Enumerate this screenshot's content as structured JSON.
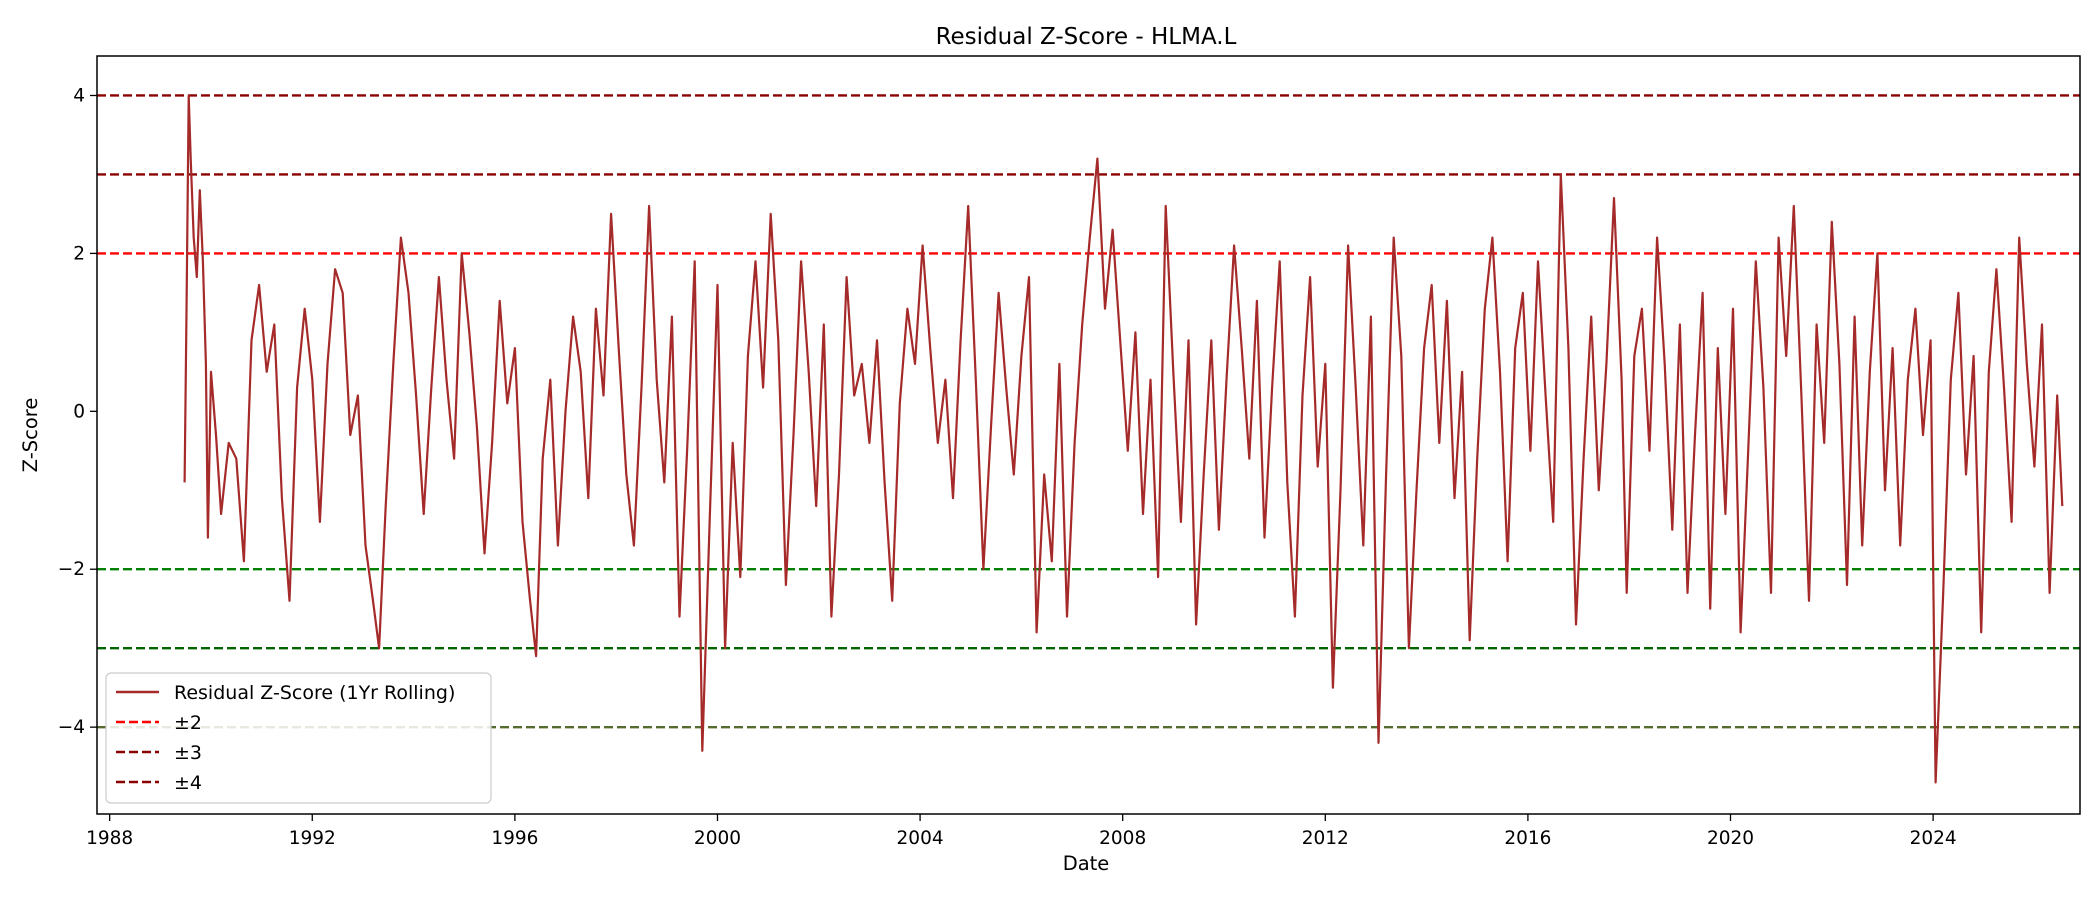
{
  "chart_data": {
    "type": "line",
    "title": "Residual Z-Score - HLMA.L",
    "xlabel": "Date",
    "ylabel": "Z-Score",
    "xlim": [
      1987.75,
      2026.9
    ],
    "ylim": [
      -5.1,
      4.5
    ],
    "x_ticks": [
      1988,
      1992,
      1996,
      2000,
      2004,
      2008,
      2012,
      2016,
      2020,
      2024
    ],
    "y_ticks": [
      4,
      2,
      0,
      -2,
      -4
    ],
    "y_tick_labels": [
      "4",
      "2",
      "0",
      "−2",
      "−4"
    ],
    "grid": false,
    "legend_position": "lower-left",
    "legend": [
      {
        "label": "Residual Z-Score (1Yr Rolling)",
        "color": "#a52a2a",
        "style": "solid"
      },
      {
        "label": "±2",
        "color": "#ff0000",
        "style": "dashed"
      },
      {
        "label": "±3",
        "color": "#8b0000",
        "style": "dashed"
      },
      {
        "label": "±4",
        "color": "#8b0000",
        "style": "dashed"
      }
    ],
    "threshold_lines": [
      {
        "y": 4,
        "color": "#8b0000"
      },
      {
        "y": 3,
        "color": "#8b0000"
      },
      {
        "y": 2,
        "color": "#ff0000"
      },
      {
        "y": -2,
        "color": "#008000"
      },
      {
        "y": -3,
        "color": "#006400"
      },
      {
        "y": -4,
        "color": "#556b2f"
      }
    ],
    "series": [
      {
        "color": "#a52a2a",
        "points": [
          [
            1989.48,
            -0.9
          ],
          [
            1989.52,
            1.5
          ],
          [
            1989.56,
            4.0
          ],
          [
            1989.6,
            3.2
          ],
          [
            1989.66,
            2.2
          ],
          [
            1989.72,
            1.7
          ],
          [
            1989.78,
            2.8
          ],
          [
            1989.84,
            1.9
          ],
          [
            1989.9,
            0.6
          ],
          [
            1989.94,
            -1.6
          ],
          [
            1990.0,
            0.5
          ],
          [
            1990.1,
            -0.3
          ],
          [
            1990.2,
            -1.3
          ],
          [
            1990.35,
            -0.4
          ],
          [
            1990.5,
            -0.6
          ],
          [
            1990.65,
            -1.9
          ],
          [
            1990.8,
            0.9
          ],
          [
            1990.95,
            1.6
          ],
          [
            1991.1,
            0.5
          ],
          [
            1991.25,
            1.1
          ],
          [
            1991.4,
            -1.1
          ],
          [
            1991.55,
            -2.4
          ],
          [
            1991.7,
            0.3
          ],
          [
            1991.85,
            1.3
          ],
          [
            1992.0,
            0.4
          ],
          [
            1992.15,
            -1.4
          ],
          [
            1992.3,
            0.6
          ],
          [
            1992.45,
            1.8
          ],
          [
            1992.6,
            1.5
          ],
          [
            1992.75,
            -0.3
          ],
          [
            1992.9,
            0.2
          ],
          [
            1993.05,
            -1.7
          ],
          [
            1993.2,
            -2.4
          ],
          [
            1993.32,
            -3.0
          ],
          [
            1993.45,
            -1.2
          ],
          [
            1993.6,
            0.6
          ],
          [
            1993.75,
            2.2
          ],
          [
            1993.9,
            1.5
          ],
          [
            1994.05,
            0.2
          ],
          [
            1994.2,
            -1.3
          ],
          [
            1994.35,
            0.3
          ],
          [
            1994.5,
            1.7
          ],
          [
            1994.65,
            0.4
          ],
          [
            1994.8,
            -0.6
          ],
          [
            1994.95,
            2.0
          ],
          [
            1995.1,
            1.0
          ],
          [
            1995.25,
            -0.2
          ],
          [
            1995.4,
            -1.8
          ],
          [
            1995.55,
            -0.4
          ],
          [
            1995.7,
            1.4
          ],
          [
            1995.85,
            0.1
          ],
          [
            1996.0,
            0.8
          ],
          [
            1996.15,
            -1.4
          ],
          [
            1996.3,
            -2.4
          ],
          [
            1996.42,
            -3.1
          ],
          [
            1996.55,
            -0.6
          ],
          [
            1996.7,
            0.4
          ],
          [
            1996.85,
            -1.7
          ],
          [
            1997.0,
            0.0
          ],
          [
            1997.15,
            1.2
          ],
          [
            1997.3,
            0.5
          ],
          [
            1997.45,
            -1.1
          ],
          [
            1997.6,
            1.3
          ],
          [
            1997.75,
            0.2
          ],
          [
            1997.9,
            2.5
          ],
          [
            1998.05,
            0.8
          ],
          [
            1998.2,
            -0.8
          ],
          [
            1998.35,
            -1.7
          ],
          [
            1998.5,
            0.3
          ],
          [
            1998.65,
            2.6
          ],
          [
            1998.8,
            0.4
          ],
          [
            1998.95,
            -0.9
          ],
          [
            1999.1,
            1.2
          ],
          [
            1999.25,
            -2.6
          ],
          [
            1999.4,
            -0.5
          ],
          [
            1999.55,
            1.9
          ],
          [
            1999.7,
            -4.3
          ],
          [
            1999.85,
            -1.3
          ],
          [
            2000.0,
            1.6
          ],
          [
            2000.15,
            -3.0
          ],
          [
            2000.3,
            -0.4
          ],
          [
            2000.45,
            -2.1
          ],
          [
            2000.6,
            0.7
          ],
          [
            2000.75,
            1.9
          ],
          [
            2000.9,
            0.3
          ],
          [
            2001.05,
            2.5
          ],
          [
            2001.2,
            0.9
          ],
          [
            2001.35,
            -2.2
          ],
          [
            2001.5,
            -0.3
          ],
          [
            2001.65,
            1.9
          ],
          [
            2001.8,
            0.5
          ],
          [
            2001.95,
            -1.2
          ],
          [
            2002.1,
            1.1
          ],
          [
            2002.25,
            -2.6
          ],
          [
            2002.4,
            -0.8
          ],
          [
            2002.55,
            1.7
          ],
          [
            2002.7,
            0.2
          ],
          [
            2002.85,
            0.6
          ],
          [
            2003.0,
            -0.4
          ],
          [
            2003.15,
            0.9
          ],
          [
            2003.3,
            -0.9
          ],
          [
            2003.45,
            -2.4
          ],
          [
            2003.6,
            0.1
          ],
          [
            2003.75,
            1.3
          ],
          [
            2003.9,
            0.6
          ],
          [
            2004.05,
            2.1
          ],
          [
            2004.2,
            0.8
          ],
          [
            2004.35,
            -0.4
          ],
          [
            2004.5,
            0.4
          ],
          [
            2004.65,
            -1.1
          ],
          [
            2004.8,
            0.9
          ],
          [
            2004.95,
            2.6
          ],
          [
            2005.1,
            0.4
          ],
          [
            2005.25,
            -2.0
          ],
          [
            2005.4,
            -0.2
          ],
          [
            2005.55,
            1.5
          ],
          [
            2005.7,
            0.3
          ],
          [
            2005.85,
            -0.8
          ],
          [
            2006.0,
            0.7
          ],
          [
            2006.15,
            1.7
          ],
          [
            2006.3,
            -2.8
          ],
          [
            2006.45,
            -0.8
          ],
          [
            2006.6,
            -1.9
          ],
          [
            2006.75,
            0.6
          ],
          [
            2006.9,
            -2.6
          ],
          [
            2007.05,
            -0.4
          ],
          [
            2007.2,
            1.1
          ],
          [
            2007.35,
            2.2
          ],
          [
            2007.5,
            3.2
          ],
          [
            2007.65,
            1.3
          ],
          [
            2007.8,
            2.3
          ],
          [
            2007.95,
            0.9
          ],
          [
            2008.1,
            -0.5
          ],
          [
            2008.25,
            1.0
          ],
          [
            2008.4,
            -1.3
          ],
          [
            2008.55,
            0.4
          ],
          [
            2008.7,
            -2.1
          ],
          [
            2008.85,
            2.6
          ],
          [
            2009.0,
            0.5
          ],
          [
            2009.15,
            -1.4
          ],
          [
            2009.3,
            0.9
          ],
          [
            2009.45,
            -2.7
          ],
          [
            2009.6,
            -0.8
          ],
          [
            2009.75,
            0.9
          ],
          [
            2009.9,
            -1.5
          ],
          [
            2010.05,
            0.4
          ],
          [
            2010.2,
            2.1
          ],
          [
            2010.35,
            0.8
          ],
          [
            2010.5,
            -0.6
          ],
          [
            2010.65,
            1.4
          ],
          [
            2010.8,
            -1.6
          ],
          [
            2010.95,
            0.3
          ],
          [
            2011.1,
            1.9
          ],
          [
            2011.25,
            -0.9
          ],
          [
            2011.4,
            -2.6
          ],
          [
            2011.55,
            0.2
          ],
          [
            2011.7,
            1.7
          ],
          [
            2011.85,
            -0.7
          ],
          [
            2012.0,
            0.6
          ],
          [
            2012.15,
            -3.5
          ],
          [
            2012.3,
            -1.0
          ],
          [
            2012.45,
            2.1
          ],
          [
            2012.6,
            0.3
          ],
          [
            2012.75,
            -1.7
          ],
          [
            2012.9,
            1.2
          ],
          [
            2013.05,
            -4.2
          ],
          [
            2013.2,
            -0.8
          ],
          [
            2013.35,
            2.2
          ],
          [
            2013.5,
            0.7
          ],
          [
            2013.65,
            -3.0
          ],
          [
            2013.8,
            -1.0
          ],
          [
            2013.95,
            0.8
          ],
          [
            2014.1,
            1.6
          ],
          [
            2014.25,
            -0.4
          ],
          [
            2014.4,
            1.4
          ],
          [
            2014.55,
            -1.1
          ],
          [
            2014.7,
            0.5
          ],
          [
            2014.85,
            -2.9
          ],
          [
            2015.0,
            -0.6
          ],
          [
            2015.15,
            1.3
          ],
          [
            2015.3,
            2.2
          ],
          [
            2015.45,
            0.5
          ],
          [
            2015.6,
            -1.9
          ],
          [
            2015.75,
            0.8
          ],
          [
            2015.9,
            1.5
          ],
          [
            2016.05,
            -0.5
          ],
          [
            2016.2,
            1.9
          ],
          [
            2016.35,
            0.2
          ],
          [
            2016.5,
            -1.4
          ],
          [
            2016.65,
            3.0
          ],
          [
            2016.8,
            0.8
          ],
          [
            2016.95,
            -2.7
          ],
          [
            2017.1,
            -0.6
          ],
          [
            2017.25,
            1.2
          ],
          [
            2017.4,
            -1.0
          ],
          [
            2017.55,
            0.6
          ],
          [
            2017.7,
            2.7
          ],
          [
            2017.85,
            0.4
          ],
          [
            2017.95,
            -2.3
          ],
          [
            2018.1,
            0.7
          ],
          [
            2018.25,
            1.3
          ],
          [
            2018.4,
            -0.5
          ],
          [
            2018.55,
            2.2
          ],
          [
            2018.7,
            0.6
          ],
          [
            2018.85,
            -1.5
          ],
          [
            2019.0,
            1.1
          ],
          [
            2019.15,
            -2.3
          ],
          [
            2019.3,
            -0.3
          ],
          [
            2019.45,
            1.5
          ],
          [
            2019.6,
            -2.5
          ],
          [
            2019.75,
            0.8
          ],
          [
            2019.9,
            -1.3
          ],
          [
            2020.05,
            1.3
          ],
          [
            2020.2,
            -2.8
          ],
          [
            2020.35,
            -0.5
          ],
          [
            2020.5,
            1.9
          ],
          [
            2020.65,
            0.3
          ],
          [
            2020.8,
            -2.3
          ],
          [
            2020.95,
            2.2
          ],
          [
            2021.1,
            0.7
          ],
          [
            2021.25,
            2.6
          ],
          [
            2021.4,
            0.2
          ],
          [
            2021.55,
            -2.4
          ],
          [
            2021.7,
            1.1
          ],
          [
            2021.85,
            -0.4
          ],
          [
            2022.0,
            2.4
          ],
          [
            2022.15,
            0.6
          ],
          [
            2022.3,
            -2.2
          ],
          [
            2022.45,
            1.2
          ],
          [
            2022.6,
            -1.7
          ],
          [
            2022.75,
            0.5
          ],
          [
            2022.9,
            2.0
          ],
          [
            2023.05,
            -1.0
          ],
          [
            2023.2,
            0.8
          ],
          [
            2023.35,
            -1.7
          ],
          [
            2023.5,
            0.4
          ],
          [
            2023.65,
            1.3
          ],
          [
            2023.8,
            -0.3
          ],
          [
            2023.95,
            0.9
          ],
          [
            2024.05,
            -4.7
          ],
          [
            2024.2,
            -2.3
          ],
          [
            2024.35,
            0.4
          ],
          [
            2024.5,
            1.5
          ],
          [
            2024.65,
            -0.8
          ],
          [
            2024.8,
            0.7
          ],
          [
            2024.95,
            -2.8
          ],
          [
            2025.1,
            0.5
          ],
          [
            2025.25,
            1.8
          ],
          [
            2025.4,
            0.3
          ],
          [
            2025.55,
            -1.4
          ],
          [
            2025.7,
            2.2
          ],
          [
            2025.85,
            0.6
          ],
          [
            2026.0,
            -0.7
          ],
          [
            2026.15,
            1.1
          ],
          [
            2026.3,
            -2.3
          ],
          [
            2026.45,
            0.2
          ],
          [
            2026.55,
            -1.2
          ]
        ]
      }
    ]
  }
}
